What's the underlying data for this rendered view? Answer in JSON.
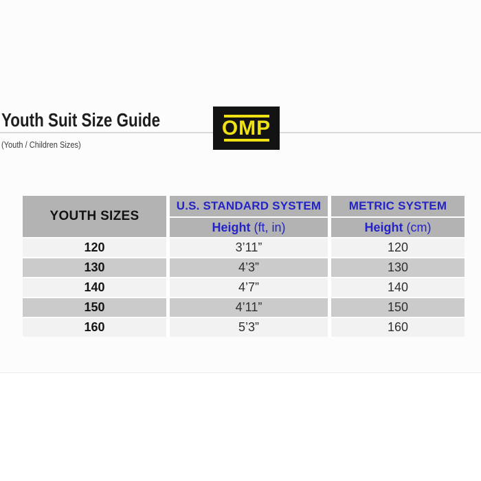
{
  "header": {
    "title": "Youth Suit Size Guide",
    "subtitle": "(Youth / Children Sizes)",
    "logo_text": "OMP"
  },
  "colors": {
    "accent_blue": "#2323c8",
    "logo_yellow": "#f0e114",
    "logo_background": "#131313",
    "table_header_gray": "#b3b3b3",
    "row_light": "#f2f2f2",
    "row_dark": "#cbcbcb"
  },
  "table": {
    "col1_header": "YOUTH SIZES",
    "us_header": "U.S. STANDARD SYSTEM",
    "metric_header": "METRIC SYSTEM",
    "height_label": "Height",
    "us_unit": "(ft, in)",
    "metric_unit": "(cm)",
    "rows": [
      {
        "size": "120",
        "height_ftin": "3’11”",
        "height_cm": "120"
      },
      {
        "size": "130",
        "height_ftin": "4’3”",
        "height_cm": "130"
      },
      {
        "size": "140",
        "height_ftin": "4’7”",
        "height_cm": "140"
      },
      {
        "size": "150",
        "height_ftin": "4’11”",
        "height_cm": "150"
      },
      {
        "size": "160",
        "height_ftin": "5’3”",
        "height_cm": "160"
      }
    ]
  }
}
